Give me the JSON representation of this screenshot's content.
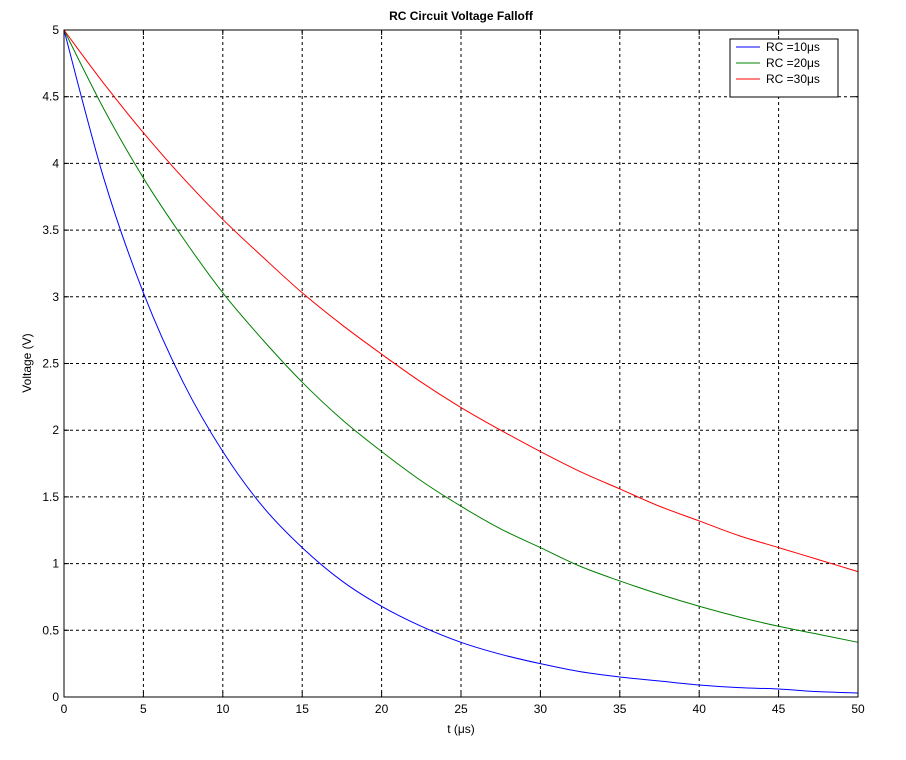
{
  "chart_data": {
    "type": "line",
    "title": "RC Circuit Voltage Falloff",
    "xlabel": "t (μs)",
    "ylabel": "Voltage (V)",
    "xlim": [
      0,
      50
    ],
    "ylim": [
      0,
      5
    ],
    "xticks": [
      0,
      5,
      10,
      15,
      20,
      25,
      30,
      35,
      40,
      45,
      50
    ],
    "yticks": [
      0,
      0.5,
      1,
      1.5,
      2,
      2.5,
      3,
      3.5,
      4,
      4.5,
      5
    ],
    "x_tick_labels": [
      "0",
      "5",
      "10",
      "15",
      "20",
      "25",
      "30",
      "35",
      "40",
      "45",
      "50"
    ],
    "y_tick_labels": [
      "0",
      "0.5",
      "1",
      "1.5",
      "2",
      "2.5",
      "3",
      "3.5",
      "4",
      "4.5",
      "5"
    ],
    "grid": true,
    "legend_position": "top-right",
    "x": [
      0,
      2.5,
      5,
      7.5,
      10,
      12.5,
      15,
      17.5,
      20,
      22.5,
      25,
      27.5,
      30,
      32.5,
      35,
      37.5,
      40,
      42.5,
      45,
      47.5,
      50
    ],
    "series": [
      {
        "name": "RC =10μs",
        "color": "#0000ff",
        "values": [
          5.0,
          3.89,
          3.03,
          2.36,
          1.84,
          1.43,
          1.12,
          0.87,
          0.68,
          0.53,
          0.41,
          0.32,
          0.25,
          0.19,
          0.15,
          0.12,
          0.09,
          0.07,
          0.06,
          0.04,
          0.03
        ]
      },
      {
        "name": "RC =20μs",
        "color": "#008000",
        "values": [
          5.0,
          4.41,
          3.89,
          3.44,
          3.03,
          2.68,
          2.36,
          2.08,
          1.84,
          1.62,
          1.43,
          1.26,
          1.12,
          0.98,
          0.87,
          0.77,
          0.68,
          0.6,
          0.53,
          0.47,
          0.41
        ]
      },
      {
        "name": "RC =30μs",
        "color": "#ff0000",
        "values": [
          5.0,
          4.6,
          4.23,
          3.89,
          3.58,
          3.3,
          3.03,
          2.79,
          2.57,
          2.36,
          2.17,
          2.0,
          1.84,
          1.69,
          1.56,
          1.43,
          1.32,
          1.21,
          1.12,
          1.03,
          0.94
        ]
      }
    ]
  }
}
